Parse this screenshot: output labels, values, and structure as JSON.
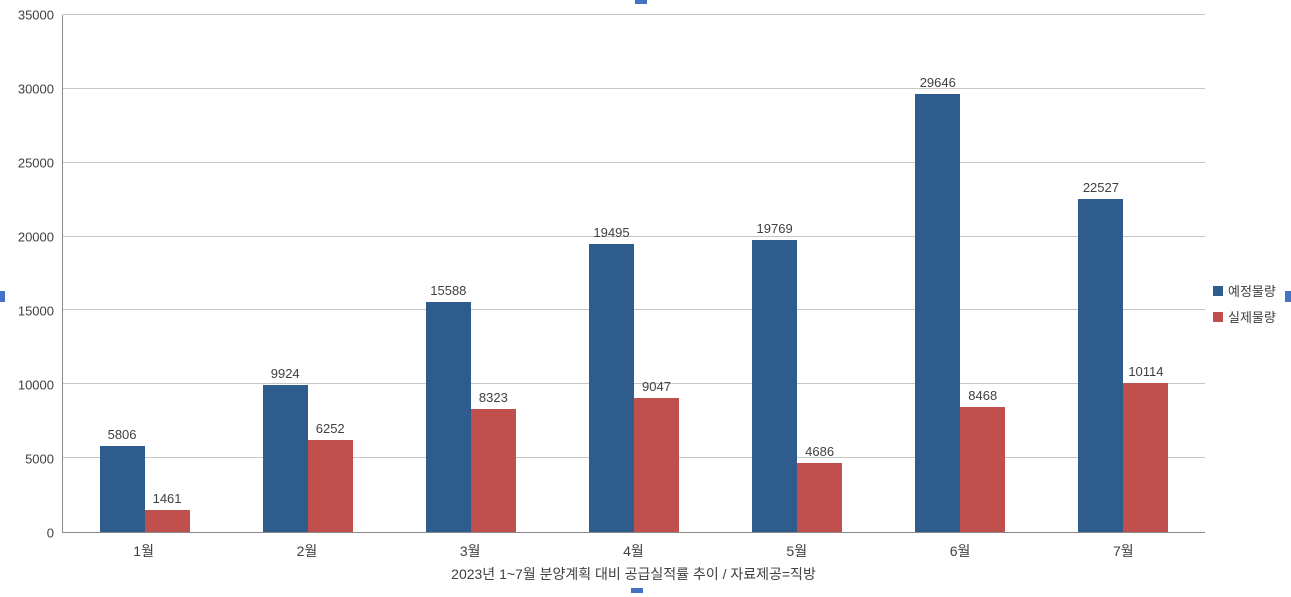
{
  "chart_data": {
    "type": "bar",
    "categories": [
      "1월",
      "2월",
      "3월",
      "4월",
      "5월",
      "6월",
      "7월"
    ],
    "series": [
      {
        "name": "예정물량",
        "color": "#2e5c8c",
        "values": [
          5806,
          9924,
          15588,
          19495,
          19769,
          29646,
          22527
        ]
      },
      {
        "name": "실제물량",
        "color": "#c0504d",
        "values": [
          1461,
          6252,
          8323,
          9047,
          4686,
          8468,
          10114
        ]
      }
    ],
    "title": "",
    "xlabel": "2023년 1~7월 분양계획 대비 공급실적률 추이 / 자료제공=직방",
    "ylabel": "",
    "ylim": [
      0,
      35000
    ],
    "ytick_step": 5000,
    "grid": true,
    "legend_position": "right",
    "value_labels": true
  },
  "caption": "2023년 1~7월 분양계획 대비 공급실적률 추이 / 자료제공=직방",
  "colors": {
    "planned": "#2e5c8c",
    "actual": "#c0504d",
    "gridline": "#c6c6c6",
    "axis": "#898989",
    "selection_handle": "#4472c4",
    "text": "#404040"
  }
}
